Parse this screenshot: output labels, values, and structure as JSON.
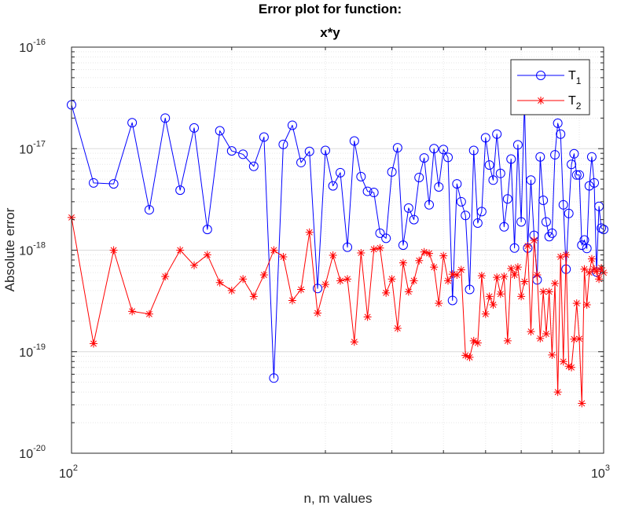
{
  "chart_data": {
    "type": "line",
    "title": "Error plot for function:",
    "subtitle": "x*y",
    "xlabel": "n, m values",
    "ylabel": "Absolute error",
    "x_scale": "log",
    "y_scale": "log",
    "xlim": [
      100,
      1000
    ],
    "ylim": [
      1e-20,
      1e-16
    ],
    "grid": true,
    "minor_grid": true,
    "legend_position": "top-right",
    "x_ticks": [
      {
        "value": 100,
        "base": "10",
        "exp": "2"
      },
      {
        "value": 1000,
        "base": "10",
        "exp": "3"
      }
    ],
    "y_ticks": [
      {
        "value": 1e-20,
        "base": "10",
        "exp": "-20"
      },
      {
        "value": 1e-19,
        "base": "10",
        "exp": "-19"
      },
      {
        "value": 1e-18,
        "base": "10",
        "exp": "-18"
      },
      {
        "value": 1e-17,
        "base": "10",
        "exp": "-17"
      },
      {
        "value": 1e-16,
        "base": "10",
        "exp": "-16"
      }
    ],
    "series": [
      {
        "name": "T",
        "name_sub": "1",
        "color": "#0000ff",
        "marker": "circle",
        "x": [
          100,
          110,
          120,
          130,
          140,
          150,
          160,
          170,
          180,
          190,
          200,
          210,
          220,
          230,
          240,
          250,
          260,
          270,
          280,
          290,
          300,
          310,
          320,
          330,
          340,
          350,
          360,
          370,
          380,
          390,
          400,
          410,
          420,
          430,
          440,
          450,
          460,
          470,
          480,
          490,
          500,
          510,
          520,
          530,
          540,
          550,
          560,
          570,
          580,
          590,
          600,
          610,
          620,
          630,
          640,
          650,
          660,
          670,
          680,
          690,
          700,
          710,
          720,
          730,
          740,
          750,
          760,
          770,
          780,
          790,
          800,
          810,
          820,
          830,
          840,
          850,
          860,
          870,
          880,
          890,
          900,
          910,
          920,
          930,
          940,
          950,
          960,
          970,
          980,
          990,
          1000
        ],
        "y": [
          2.7e-17,
          4.6e-18,
          4.5e-18,
          1.8e-17,
          2.5e-18,
          2e-17,
          3.9e-18,
          1.6e-17,
          1.6e-18,
          1.5e-17,
          9.5e-18,
          8.8e-18,
          6.7e-18,
          1.3e-17,
          5.5e-20,
          1.1e-17,
          1.7e-17,
          7.3e-18,
          9.4e-18,
          4.2e-19,
          9.6e-18,
          4.3e-18,
          5.8e-18,
          1.07e-18,
          1.19e-17,
          5.3e-18,
          3.8e-18,
          3.7e-18,
          1.47e-18,
          1.31e-18,
          5.9e-18,
          1.02e-17,
          1.12e-18,
          2.6e-18,
          2e-18,
          5.2e-18,
          8.1e-18,
          2.8e-18,
          1e-17,
          4.2e-18,
          9.8e-18,
          8.2e-18,
          3.2e-19,
          4.5e-18,
          3e-18,
          2.2e-18,
          4.1e-19,
          9.6e-18,
          1.85e-18,
          2.4e-18,
          1.28e-17,
          6.9e-18,
          4.9e-18,
          1.39e-17,
          5.7e-18,
          1.7e-18,
          3.2e-18,
          7.9e-18,
          1.05e-18,
          1.09e-17,
          1.9e-18,
          2.9e-17,
          1.05e-18,
          4.9e-18,
          1.4e-18,
          5.1e-19,
          8.3e-18,
          3.1e-18,
          1.9e-18,
          1.36e-18,
          1.47e-18,
          8.7e-18,
          1.78e-17,
          1.39e-17,
          2.8e-18,
          6.5e-19,
          2.3e-18,
          7e-18,
          8.9e-18,
          5.5e-18,
          5.5e-18,
          1.12e-18,
          1.26e-18,
          1.04e-18,
          4.3e-18,
          8.3e-18,
          4.6e-18,
          6.1e-19,
          2.7e-18,
          1.65e-18,
          1.6e-18
        ]
      },
      {
        "name": "T",
        "name_sub": "2",
        "color": "#ff0000",
        "marker": "asterisk",
        "x": [
          100,
          110,
          120,
          130,
          140,
          150,
          160,
          170,
          180,
          190,
          200,
          210,
          220,
          230,
          240,
          250,
          260,
          270,
          280,
          290,
          300,
          310,
          320,
          330,
          340,
          350,
          360,
          370,
          380,
          390,
          400,
          410,
          420,
          430,
          440,
          450,
          460,
          470,
          480,
          490,
          500,
          510,
          520,
          530,
          540,
          550,
          560,
          570,
          580,
          590,
          600,
          610,
          620,
          630,
          640,
          650,
          660,
          670,
          680,
          690,
          700,
          710,
          720,
          730,
          740,
          750,
          760,
          770,
          780,
          790,
          800,
          810,
          820,
          830,
          840,
          850,
          860,
          870,
          880,
          890,
          900,
          910,
          920,
          930,
          940,
          950,
          960,
          970,
          980,
          990,
          1000
        ],
        "y": [
          2.1e-18,
          1.2e-19,
          1e-18,
          2.5e-19,
          2.35e-19,
          5.5e-19,
          1e-18,
          7.1e-19,
          9e-19,
          4.8e-19,
          4e-19,
          5.2e-19,
          3.5e-19,
          5.7e-19,
          1e-18,
          8.6e-19,
          3.2e-19,
          4.1e-19,
          1.5e-18,
          2.4e-19,
          4.6e-19,
          8.9e-19,
          5e-19,
          5.2e-19,
          1.25e-19,
          9.4e-19,
          2.2e-19,
          1.02e-18,
          1.05e-18,
          3.8e-19,
          5.2e-19,
          1.7e-19,
          7.5e-19,
          3.9e-19,
          5e-19,
          7.9e-19,
          9.6e-19,
          9.3e-19,
          6.8e-19,
          3e-19,
          8.8e-19,
          5e-19,
          5.8e-19,
          5.7e-19,
          6.4e-19,
          9.2e-20,
          8.8e-20,
          1.28e-19,
          1.22e-19,
          5.6e-19,
          2.35e-19,
          3.5e-19,
          2.9e-19,
          5.4e-19,
          3.7e-19,
          5.5e-19,
          1.28e-19,
          6.6e-19,
          5.7e-19,
          6.8e-19,
          3.5e-19,
          4.9e-19,
          1.1e-18,
          1.58e-19,
          1.25e-18,
          5.7e-19,
          1.35e-19,
          3.9e-19,
          1.5e-19,
          3.9e-19,
          9.3e-20,
          4.7e-19,
          4e-20,
          8.6e-19,
          8e-20,
          9e-19,
          7.2e-20,
          7e-20,
          1.33e-19,
          3e-19,
          1.34e-19,
          3.1e-20,
          6.5e-19,
          2.9e-19,
          6e-19,
          8.2e-19,
          6.5e-19,
          6.2e-19,
          5.2e-19,
          6.7e-19,
          6e-19
        ]
      }
    ]
  }
}
